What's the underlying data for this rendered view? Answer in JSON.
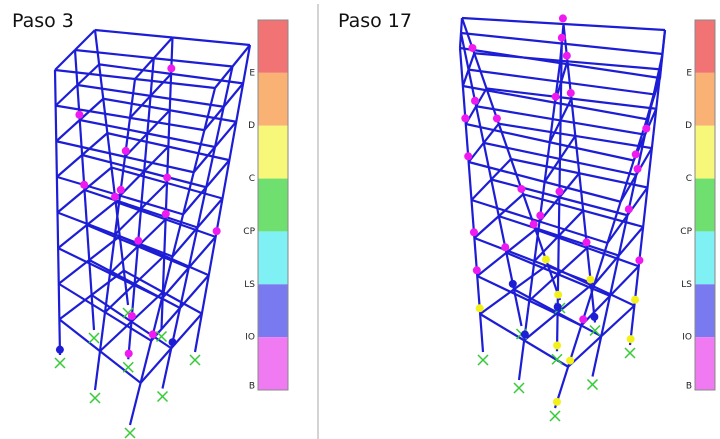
{
  "panels": [
    {
      "title": "Paso 3",
      "legend": [
        {
          "label": "E",
          "color": "#f27373"
        },
        {
          "label": "D",
          "color": "#f9b273"
        },
        {
          "label": "C",
          "color": "#f7f77a"
        },
        {
          "label": "CP",
          "color": "#6fe06f"
        },
        {
          "label": "LS",
          "color": "#7ff0f4"
        },
        {
          "label": "IO",
          "color": "#7a7af0"
        },
        {
          "label": "B",
          "color": "#f07af2"
        }
      ]
    },
    {
      "title": "Paso 17",
      "legend": [
        {
          "label": "E",
          "color": "#f27373"
        },
        {
          "label": "D",
          "color": "#f9b273"
        },
        {
          "label": "C",
          "color": "#f7f77a"
        },
        {
          "label": "CP",
          "color": "#6fe06f"
        },
        {
          "label": "LS",
          "color": "#7ff0f4"
        },
        {
          "label": "IO",
          "color": "#7a7af0"
        },
        {
          "label": "B",
          "color": "#f07af2"
        }
      ]
    }
  ]
}
